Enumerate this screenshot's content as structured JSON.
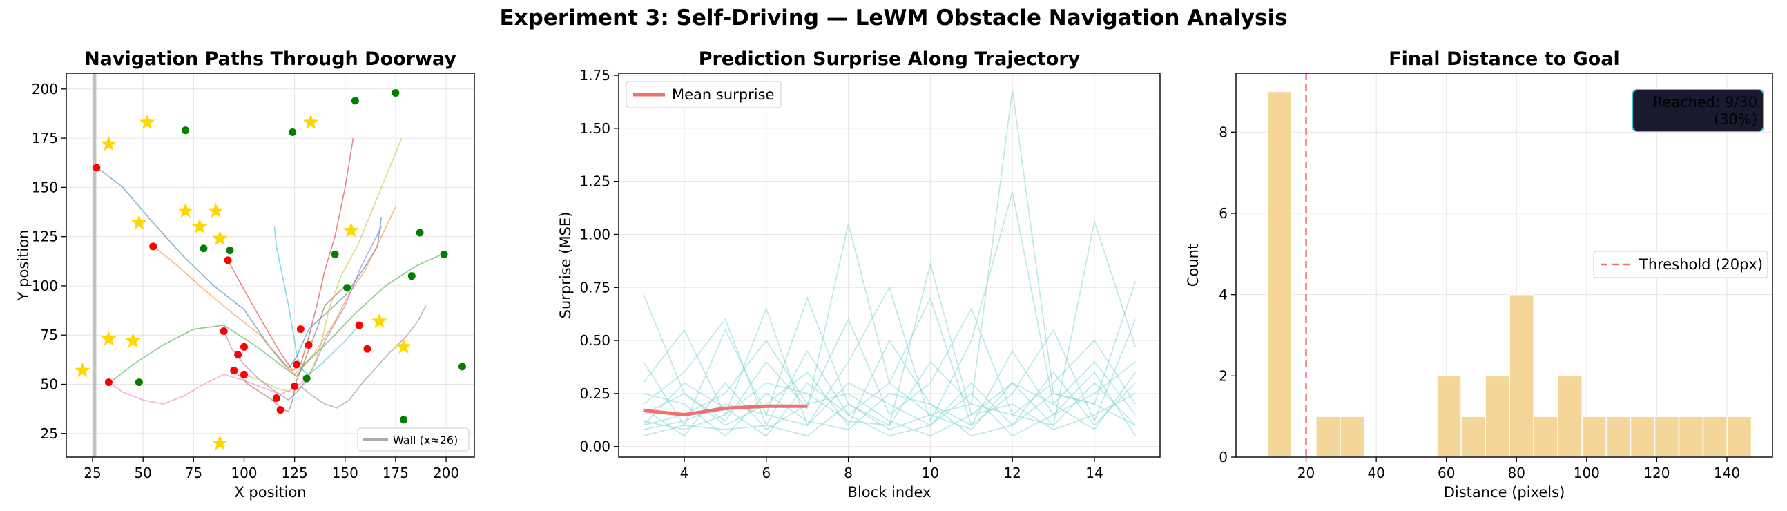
{
  "suptitle": "Experiment 3: Self-Driving — LeWM Obstacle Navigation Analysis",
  "colors": {
    "path_palette": [
      "#1f77b4",
      "#ff7f0e",
      "#2ca02c",
      "#d62728",
      "#9467bd",
      "#8c564b",
      "#e377c2",
      "#7f7f7f",
      "#bcbd22",
      "#17becf"
    ],
    "start_marker": "#ff0000",
    "end_marker": "#008000",
    "goal_marker": "#ffd700",
    "wall": "#aaaaaa",
    "surprise_line": "#7fd6d1",
    "mean_line": "#f07070",
    "histogram_bar": "#f5d69a",
    "threshold": "#f07070",
    "annotation_bg": "#1a1a2e",
    "annotation_border": "#3cc8c8"
  },
  "chart_data": [
    {
      "type": "scatter",
      "title": "Navigation Paths Through Doorway",
      "xlabel": "X position",
      "ylabel": "Y position",
      "xlim": [
        12,
        214
      ],
      "ylim": [
        13,
        208
      ],
      "xticks": [
        25,
        50,
        75,
        100,
        125,
        150,
        175,
        200
      ],
      "yticks": [
        25,
        50,
        75,
        100,
        125,
        150,
        175,
        200
      ],
      "grid": true,
      "legend": {
        "position": "bottom-right",
        "entries": [
          "Wall (x≈26)"
        ]
      },
      "wall_x": 26,
      "paths": [
        {
          "x": [
            27,
            30,
            40,
            55,
            70,
            85,
            100,
            112,
            122,
            126,
            132,
            150,
            160,
            166,
            168
          ],
          "y": [
            160,
            158,
            150,
            132,
            115,
            100,
            88,
            70,
            58,
            64,
            78,
            95,
            110,
            120,
            135
          ]
        },
        {
          "x": [
            55,
            65,
            78,
            92,
            108,
            118,
            125,
            135,
            145,
            152,
            160,
            168,
            175
          ],
          "y": [
            120,
            112,
            100,
            88,
            75,
            62,
            55,
            66,
            82,
            96,
            108,
            125,
            140
          ]
        },
        {
          "x": [
            35,
            45,
            60,
            75,
            90,
            105,
            118,
            126,
            130,
            142,
            155,
            170,
            185,
            198
          ],
          "y": [
            52,
            60,
            70,
            78,
            80,
            70,
            60,
            54,
            60,
            72,
            86,
            100,
            110,
            116
          ]
        },
        {
          "x": [
            92,
            100,
            110,
            118,
            124,
            128,
            132,
            136,
            140,
            145,
            150,
            154
          ],
          "y": [
            113,
            98,
            80,
            66,
            57,
            60,
            74,
            90,
            108,
            125,
            150,
            175
          ]
        },
        {
          "x": [
            90,
            94,
            100,
            108,
            116,
            122,
            128,
            135,
            140,
            150,
            158,
            168
          ],
          "y": [
            77,
            68,
            60,
            52,
            46,
            42,
            48,
            60,
            72,
            90,
            110,
            130
          ]
        },
        {
          "x": [
            95,
            102,
            108,
            114,
            118,
            122,
            124,
            126,
            130,
            136,
            140,
            150
          ],
          "y": [
            57,
            50,
            46,
            42,
            38,
            36,
            42,
            52,
            62,
            78,
            90,
            100
          ]
        },
        {
          "x": [
            33,
            40,
            50,
            60,
            70,
            80,
            90,
            100,
            110,
            118,
            125,
            130
          ],
          "y": [
            51,
            46,
            42,
            40,
            44,
            50,
            55,
            52,
            48,
            45,
            48,
            52
          ]
        },
        {
          "x": [
            128,
            134,
            140,
            146,
            152,
            158,
            165,
            172,
            180,
            186,
            190
          ],
          "y": [
            49,
            44,
            40,
            38,
            42,
            50,
            58,
            66,
            74,
            82,
            90
          ]
        },
        {
          "x": [
            100,
            108,
            116,
            124,
            130,
            134,
            138,
            142,
            148,
            156,
            164,
            172,
            178
          ],
          "y": [
            55,
            52,
            48,
            46,
            50,
            58,
            70,
            88,
            105,
            120,
            140,
            160,
            175
          ]
        },
        {
          "x": [
            157,
            150,
            144,
            138,
            132,
            128,
            126,
            124,
            122,
            120,
            118,
            116,
            115
          ],
          "y": [
            80,
            72,
            66,
            60,
            55,
            58,
            66,
            78,
            90,
            100,
            110,
            120,
            130
          ]
        }
      ],
      "starts": {
        "x": [
          27,
          55,
          92,
          90,
          95,
          33,
          100,
          100,
          116,
          118,
          125,
          128,
          132,
          157,
          161,
          97,
          126
        ],
        "y": [
          160,
          120,
          113,
          77,
          57,
          51,
          55,
          69,
          43,
          37,
          49,
          78,
          70,
          80,
          68,
          65,
          60
        ]
      },
      "ends": {
        "x": [
          71,
          124,
          155,
          175,
          80,
          93,
          48,
          131,
          145,
          151,
          183,
          187,
          199,
          208,
          179
        ],
        "y": [
          179,
          178,
          194,
          198,
          119,
          118,
          51,
          53,
          116,
          99,
          105,
          127,
          116,
          59,
          32
        ]
      },
      "goals": {
        "x": [
          52,
          33,
          133,
          20,
          48,
          71,
          78,
          86,
          88,
          33,
          45,
          153,
          167,
          179,
          88
        ],
        "y": [
          183,
          172,
          183,
          57,
          132,
          138,
          130,
          138,
          124,
          73,
          72,
          128,
          82,
          69,
          20
        ]
      }
    },
    {
      "type": "line",
      "title": "Prediction Surprise Along Trajectory",
      "xlabel": "Block index",
      "ylabel": "Surprise (MSE)",
      "xlim": [
        2.4,
        15.6
      ],
      "ylim": [
        -0.05,
        1.76
      ],
      "xticks": [
        4,
        6,
        8,
        10,
        12,
        14
      ],
      "yticks": [
        0.0,
        0.25,
        0.5,
        0.75,
        1.0,
        1.25,
        1.5,
        1.75
      ],
      "grid": true,
      "legend": {
        "position": "top-left",
        "entries": [
          "Mean surprise"
        ]
      },
      "x": [
        3,
        4,
        5,
        6,
        7,
        8,
        9,
        10,
        11,
        12,
        13,
        14,
        15
      ],
      "series": [
        {
          "values": [
            0.72,
            0.25,
            0.12,
            0.4,
            0.18,
            1.05,
            0.3,
            0.15,
            0.2,
            1.68,
            0.25,
            0.2,
            0.78
          ]
        },
        {
          "values": [
            0.4,
            0.1,
            0.55,
            0.15,
            0.7,
            0.2,
            0.1,
            0.86,
            0.15,
            0.3,
            0.1,
            1.06,
            0.47
          ]
        },
        {
          "values": [
            0.3,
            0.55,
            0.15,
            0.65,
            0.1,
            0.4,
            0.75,
            0.12,
            0.5,
            1.2,
            0.2,
            0.4,
            0.15
          ]
        },
        {
          "values": [
            0.2,
            0.35,
            0.6,
            0.1,
            0.45,
            0.15,
            0.3,
            0.7,
            0.1,
            0.25,
            0.55,
            0.12,
            0.6
          ]
        },
        {
          "values": [
            0.1,
            0.15,
            0.25,
            0.5,
            0.2,
            0.6,
            0.15,
            0.3,
            0.65,
            0.15,
            0.3,
            0.5,
            0.2
          ]
        },
        {
          "values": [
            0.15,
            0.25,
            0.1,
            0.2,
            0.35,
            0.1,
            0.5,
            0.2,
            0.1,
            0.45,
            0.15,
            0.25,
            0.4
          ]
        },
        {
          "values": [
            0.08,
            0.12,
            0.2,
            0.15,
            0.1,
            0.3,
            0.2,
            0.1,
            0.3,
            0.1,
            0.35,
            0.1,
            0.3
          ]
        },
        {
          "values": [
            0.12,
            0.08,
            0.15,
            0.3,
            0.25,
            0.12,
            0.1,
            0.4,
            0.2,
            0.15,
            0.1,
            0.3,
            0.1
          ]
        },
        {
          "values": [
            0.05,
            0.1,
            0.08,
            0.1,
            0.05,
            0.2,
            0.08,
            0.15,
            0.08,
            0.3,
            0.2,
            0.08,
            0.35
          ]
        },
        {
          "values": [
            0.18,
            0.05,
            0.3,
            0.08,
            0.2,
            0.25,
            0.12,
            0.05,
            0.15,
            0.2,
            0.08,
            0.15,
            0.25
          ]
        },
        {
          "values": [
            0.25,
            0.2,
            0.05,
            0.25,
            0.12,
            0.08,
            0.25,
            0.2,
            0.05,
            0.1,
            0.25,
            0.2,
            0.1
          ]
        },
        {
          "values": [
            0.1,
            0.3,
            0.18,
            0.05,
            0.3,
            0.15,
            0.05,
            0.1,
            0.25,
            0.05,
            0.15,
            0.35,
            0.05
          ]
        }
      ],
      "mean_series": {
        "name": "Mean surprise",
        "x": [
          3,
          4,
          5,
          6,
          7
        ],
        "values": [
          0.17,
          0.15,
          0.18,
          0.19,
          0.19
        ]
      }
    },
    {
      "type": "bar",
      "title": "Final Distance to Goal",
      "xlabel": "Distance (pixels)",
      "ylabel": "Count",
      "xlim": [
        0,
        153
      ],
      "ylim": [
        0,
        9.45
      ],
      "xticks": [
        20,
        40,
        60,
        80,
        100,
        120,
        140
      ],
      "yticks": [
        0,
        2,
        4,
        6,
        8
      ],
      "grid": true,
      "legend": {
        "position": "center-right",
        "entries": [
          "Threshold (20px)"
        ]
      },
      "bin_edges": [
        9,
        15.9,
        22.8,
        29.7,
        36.6,
        43.5,
        50.4,
        57.3,
        64.2,
        71.1,
        78.0,
        84.9,
        91.8,
        98.7,
        105.6,
        112.5,
        119.4,
        126.3,
        133.2,
        140.1,
        147.0
      ],
      "values": [
        9,
        0,
        1,
        1,
        0,
        0,
        0,
        2,
        1,
        2,
        4,
        1,
        2,
        1,
        1,
        1,
        1,
        1,
        1,
        1
      ],
      "threshold": 20,
      "annotation": [
        "Reached: 9/30",
        "(30%)"
      ]
    }
  ]
}
